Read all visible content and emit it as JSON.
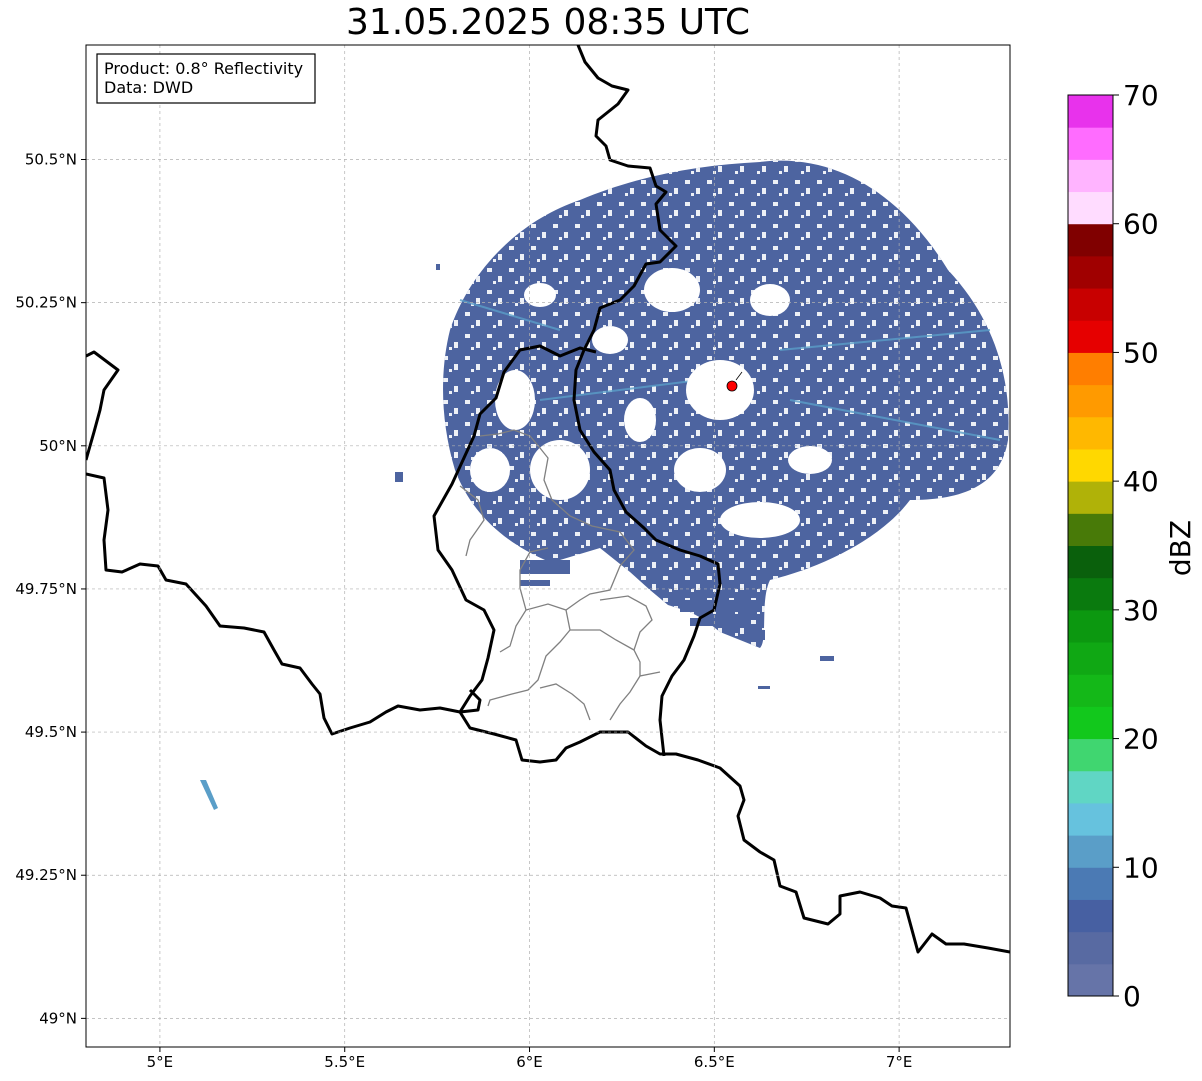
{
  "title": "31.05.2025 08:35 UTC",
  "info_box": {
    "product": "Product: 0.8° Reflectivity",
    "source": "Data: DWD"
  },
  "axes": {
    "lon_range": [
      4.8,
      7.3
    ],
    "lat_range": [
      48.95,
      50.7
    ],
    "x_ticks": [
      {
        "value": 5.0,
        "label": "5°E"
      },
      {
        "value": 5.5,
        "label": "5.5°E"
      },
      {
        "value": 6.0,
        "label": "6°E"
      },
      {
        "value": 6.5,
        "label": "6.5°E"
      },
      {
        "value": 7.0,
        "label": "7°E"
      }
    ],
    "y_ticks": [
      {
        "value": 49.0,
        "label": "49°N"
      },
      {
        "value": 49.25,
        "label": "49.25°N"
      },
      {
        "value": 49.5,
        "label": "49.5°N"
      },
      {
        "value": 49.75,
        "label": "49.75°N"
      },
      {
        "value": 50.0,
        "label": "50°N"
      },
      {
        "value": 50.25,
        "label": "50.25°N"
      },
      {
        "value": 50.5,
        "label": "50.5°N"
      }
    ],
    "grid": true
  },
  "radar": {
    "site": {
      "lon": 6.55,
      "lat": 50.11,
      "color": "#ff0000"
    },
    "coverage_color": "#4d64a0",
    "light_return_color": "#5a9ec8"
  },
  "colorbar": {
    "unit": "dBZ",
    "min": 0,
    "max": 70,
    "step": 2.5,
    "ticks": [
      {
        "value": 0,
        "label": "0"
      },
      {
        "value": 10,
        "label": "10"
      },
      {
        "value": 20,
        "label": "20"
      },
      {
        "value": 30,
        "label": "30"
      },
      {
        "value": 40,
        "label": "40"
      },
      {
        "value": 50,
        "label": "50"
      },
      {
        "value": 60,
        "label": "60"
      },
      {
        "value": 70,
        "label": "70"
      }
    ],
    "colors": [
      "#6674a8",
      "#586aa2",
      "#4760a2",
      "#4b7ab4",
      "#5a9ec8",
      "#66c2de",
      "#60d6c4",
      "#40d670",
      "#12c81c",
      "#14b818",
      "#10a814",
      "#0c9810",
      "#0a7a0e",
      "#0a600c",
      "#487a08",
      "#b0b208",
      "#ffd800",
      "#ffb800",
      "#ff9a00",
      "#ff7e00",
      "#e60000",
      "#c80000",
      "#a00000",
      "#800000",
      "#ffdcff",
      "#ffb4ff",
      "#ff6cff",
      "#e832ec"
    ]
  }
}
